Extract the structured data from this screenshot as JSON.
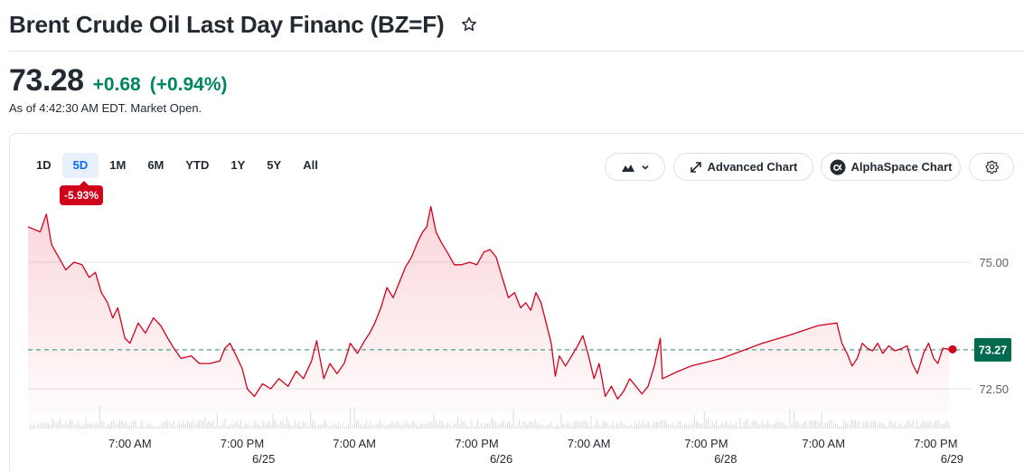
{
  "header": {
    "title": "Brent Crude Oil Last Day Financ (BZ=F)"
  },
  "quote": {
    "price": "73.28",
    "change": "+0.68",
    "change_pct": "(+0.94%)",
    "as_of": "As of 4:42:30 AM EDT. Market Open."
  },
  "ranges": [
    "1D",
    "5D",
    "1M",
    "6M",
    "YTD",
    "1Y",
    "5Y",
    "All"
  ],
  "active_range": "5D",
  "period_change_badge": "-5.93%",
  "toolbar": {
    "advanced_chart": "Advanced Chart",
    "alphaspace_chart": "AlphaSpace Chart"
  },
  "colors": {
    "line": "#d0021b",
    "positive": "#008463",
    "current_badge": "#006a4e",
    "active_range": "#0f69ff"
  },
  "chart_data": {
    "type": "area",
    "ylim": [
      72.0,
      76.25
    ],
    "y_ticks": [
      {
        "value": 75.0,
        "label": "75.00"
      },
      {
        "value": 72.5,
        "label": "72.50"
      }
    ],
    "reference_value": 73.27,
    "current_value_label": "73.27",
    "x_ticks": [
      {
        "t": 0.1,
        "label": "7:00 AM"
      },
      {
        "t": 0.21,
        "label": "7:00 PM"
      },
      {
        "t": 0.32,
        "label": "7:00 AM"
      },
      {
        "t": 0.44,
        "label": "7:00 PM"
      },
      {
        "t": 0.55,
        "label": "7:00 AM"
      },
      {
        "t": 0.665,
        "label": "7:00 PM"
      },
      {
        "t": 0.78,
        "label": "7:00 AM"
      },
      {
        "t": 0.89,
        "label": "7:00 PM"
      }
    ],
    "date_labels": [
      {
        "t": 0.231,
        "label": "6/25"
      },
      {
        "t": 0.464,
        "label": "6/26"
      },
      {
        "t": 0.684,
        "label": "6/28"
      },
      {
        "t": 0.906,
        "label": "6/29"
      }
    ],
    "series": [
      {
        "points": [
          [
            0.0,
            75.7
          ],
          [
            0.012,
            75.6
          ],
          [
            0.018,
            75.95
          ],
          [
            0.023,
            75.35
          ],
          [
            0.03,
            75.1
          ],
          [
            0.037,
            74.85
          ],
          [
            0.045,
            75.0
          ],
          [
            0.053,
            74.95
          ],
          [
            0.06,
            74.7
          ],
          [
            0.066,
            74.8
          ],
          [
            0.072,
            74.4
          ],
          [
            0.078,
            74.2
          ],
          [
            0.083,
            73.9
          ],
          [
            0.088,
            74.1
          ],
          [
            0.095,
            73.5
          ],
          [
            0.1,
            73.4
          ],
          [
            0.108,
            73.8
          ],
          [
            0.115,
            73.6
          ],
          [
            0.123,
            73.9
          ],
          [
            0.13,
            73.75
          ],
          [
            0.137,
            73.5
          ],
          [
            0.143,
            73.3
          ],
          [
            0.15,
            73.1
          ],
          [
            0.16,
            73.15
          ],
          [
            0.168,
            73.0
          ],
          [
            0.178,
            73.0
          ],
          [
            0.188,
            73.05
          ],
          [
            0.193,
            73.3
          ],
          [
            0.198,
            73.4
          ],
          [
            0.203,
            73.2
          ],
          [
            0.21,
            72.9
          ],
          [
            0.215,
            72.5
          ],
          [
            0.222,
            72.35
          ],
          [
            0.23,
            72.6
          ],
          [
            0.238,
            72.5
          ],
          [
            0.246,
            72.7
          ],
          [
            0.255,
            72.55
          ],
          [
            0.263,
            72.85
          ],
          [
            0.27,
            72.7
          ],
          [
            0.278,
            73.05
          ],
          [
            0.283,
            73.45
          ],
          [
            0.29,
            72.7
          ],
          [
            0.296,
            73.0
          ],
          [
            0.303,
            72.8
          ],
          [
            0.31,
            73.0
          ],
          [
            0.316,
            73.4
          ],
          [
            0.323,
            73.2
          ],
          [
            0.33,
            73.45
          ],
          [
            0.335,
            73.6
          ],
          [
            0.34,
            73.8
          ],
          [
            0.346,
            74.1
          ],
          [
            0.352,
            74.5
          ],
          [
            0.358,
            74.3
          ],
          [
            0.364,
            74.6
          ],
          [
            0.37,
            74.9
          ],
          [
            0.376,
            75.1
          ],
          [
            0.382,
            75.4
          ],
          [
            0.387,
            75.6
          ],
          [
            0.391,
            75.7
          ],
          [
            0.395,
            76.1
          ],
          [
            0.4,
            75.6
          ],
          [
            0.405,
            75.4
          ],
          [
            0.411,
            75.2
          ],
          [
            0.418,
            74.95
          ],
          [
            0.425,
            74.95
          ],
          [
            0.433,
            75.0
          ],
          [
            0.44,
            74.95
          ],
          [
            0.447,
            75.2
          ],
          [
            0.453,
            75.25
          ],
          [
            0.459,
            75.1
          ],
          [
            0.465,
            74.7
          ],
          [
            0.471,
            74.3
          ],
          [
            0.477,
            74.4
          ],
          [
            0.483,
            74.1
          ],
          [
            0.488,
            74.2
          ],
          [
            0.493,
            74.05
          ],
          [
            0.498,
            74.4
          ],
          [
            0.503,
            74.2
          ],
          [
            0.508,
            73.8
          ],
          [
            0.513,
            73.4
          ],
          [
            0.517,
            72.75
          ],
          [
            0.521,
            73.15
          ],
          [
            0.527,
            72.95
          ],
          [
            0.533,
            73.15
          ],
          [
            0.539,
            73.35
          ],
          [
            0.544,
            73.55
          ],
          [
            0.549,
            73.2
          ],
          [
            0.555,
            72.7
          ],
          [
            0.56,
            73.0
          ],
          [
            0.566,
            72.35
          ],
          [
            0.572,
            72.55
          ],
          [
            0.578,
            72.3
          ],
          [
            0.584,
            72.45
          ],
          [
            0.59,
            72.7
          ],
          [
            0.596,
            72.55
          ],
          [
            0.602,
            72.4
          ],
          [
            0.608,
            72.55
          ],
          [
            0.614,
            72.95
          ],
          [
            0.62,
            73.5
          ],
          [
            0.622,
            72.7
          ],
          [
            0.638,
            72.85
          ],
          [
            0.65,
            72.95
          ],
          [
            0.68,
            73.1
          ],
          [
            0.7,
            73.25
          ],
          [
            0.72,
            73.4
          ],
          [
            0.745,
            73.55
          ],
          [
            0.775,
            73.75
          ],
          [
            0.793,
            73.8
          ],
          [
            0.798,
            73.4
          ],
          [
            0.803,
            73.2
          ],
          [
            0.808,
            72.95
          ],
          [
            0.813,
            73.1
          ],
          [
            0.818,
            73.4
          ],
          [
            0.823,
            73.3
          ],
          [
            0.828,
            73.25
          ],
          [
            0.833,
            73.4
          ],
          [
            0.838,
            73.2
          ],
          [
            0.844,
            73.35
          ],
          [
            0.85,
            73.25
          ],
          [
            0.857,
            73.3
          ],
          [
            0.862,
            73.35
          ],
          [
            0.867,
            73.0
          ],
          [
            0.872,
            72.8
          ],
          [
            0.878,
            73.2
          ],
          [
            0.883,
            73.4
          ],
          [
            0.888,
            73.1
          ],
          [
            0.892,
            73.0
          ],
          [
            0.897,
            73.3
          ],
          [
            0.903,
            73.28
          ]
        ]
      }
    ]
  }
}
